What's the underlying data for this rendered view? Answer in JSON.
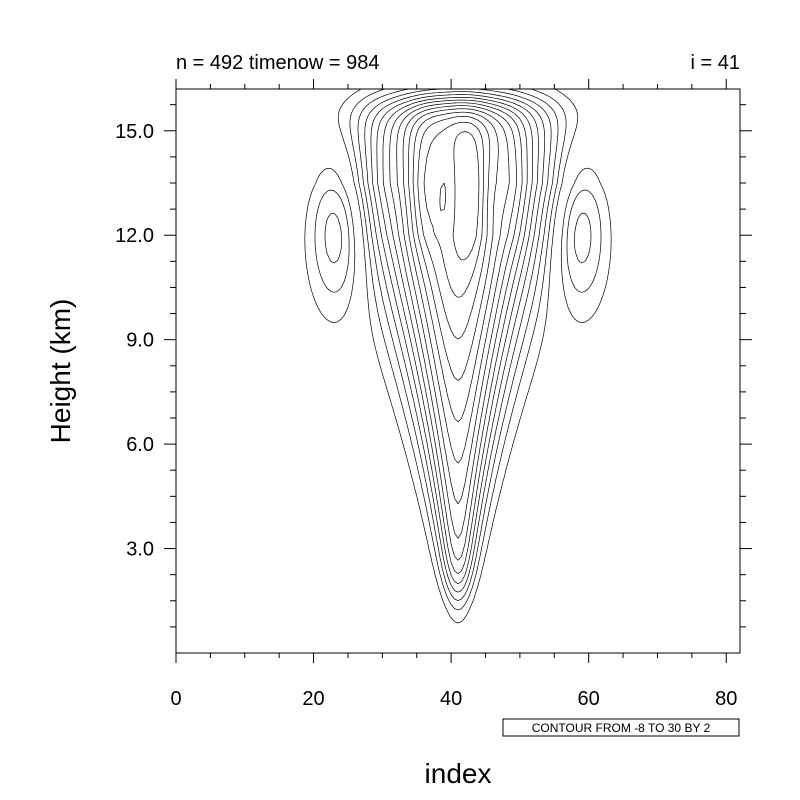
{
  "chart_data": {
    "type": "contour",
    "title_left": "n = 492 timenow = 984",
    "title_right": "i = 41",
    "xlabel": "index",
    "ylabel": "Height (km)",
    "xlim": [
      0,
      82
    ],
    "ylim": [
      0,
      16.2
    ],
    "x_ticks": [
      "0",
      "20",
      "40",
      "60",
      "80"
    ],
    "y_ticks": [
      "3.0",
      "6.0",
      "9.0",
      "12.0",
      "15.0"
    ],
    "info_label": "CONTOUR FROM -8 TO 30 BY 2",
    "contour_min": -8,
    "contour_max": 30,
    "contour_interval": 2,
    "negative_line_style": "dashed",
    "peak_center": {
      "x": 41,
      "y": 13
    }
  }
}
